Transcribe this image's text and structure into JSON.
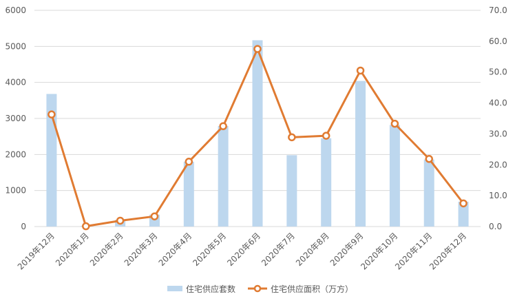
{
  "chart_data": {
    "type": "bar+line",
    "categories": [
      "2019年12月",
      "2020年1月",
      "2020年2月",
      "2020年3月",
      "2020年4月",
      "2020年5月",
      "2020年6月",
      "2020年7月",
      "2020年8月",
      "2020年9月",
      "2020年10月",
      "2020年11月",
      "2020年12月"
    ],
    "series": [
      {
        "name": "住宅供应套数",
        "type": "bar",
        "axis": "left",
        "color": "#bdd7ee",
        "values": [
          3680,
          20,
          190,
          330,
          1800,
          2790,
          5170,
          1980,
          2450,
          4040,
          2820,
          1860,
          690
        ]
      },
      {
        "name": "住宅供应面积（万方）",
        "type": "line",
        "axis": "right",
        "color": "#e07b32",
        "values": [
          36.3,
          0.1,
          1.9,
          3.3,
          21.0,
          32.5,
          57.5,
          28.9,
          29.4,
          50.5,
          33.3,
          21.9,
          7.5
        ]
      }
    ],
    "y_left": {
      "min": 0,
      "max": 6000,
      "ticks": [
        "0",
        "1000",
        "2000",
        "3000",
        "4000",
        "5000",
        "6000"
      ]
    },
    "y_right": {
      "min": 0,
      "max": 70,
      "ticks": [
        "0.0",
        "10.0",
        "20.0",
        "30.0",
        "40.0",
        "50.0",
        "60.0",
        "70.0"
      ]
    },
    "grid": true,
    "legend": "bottom-center"
  }
}
